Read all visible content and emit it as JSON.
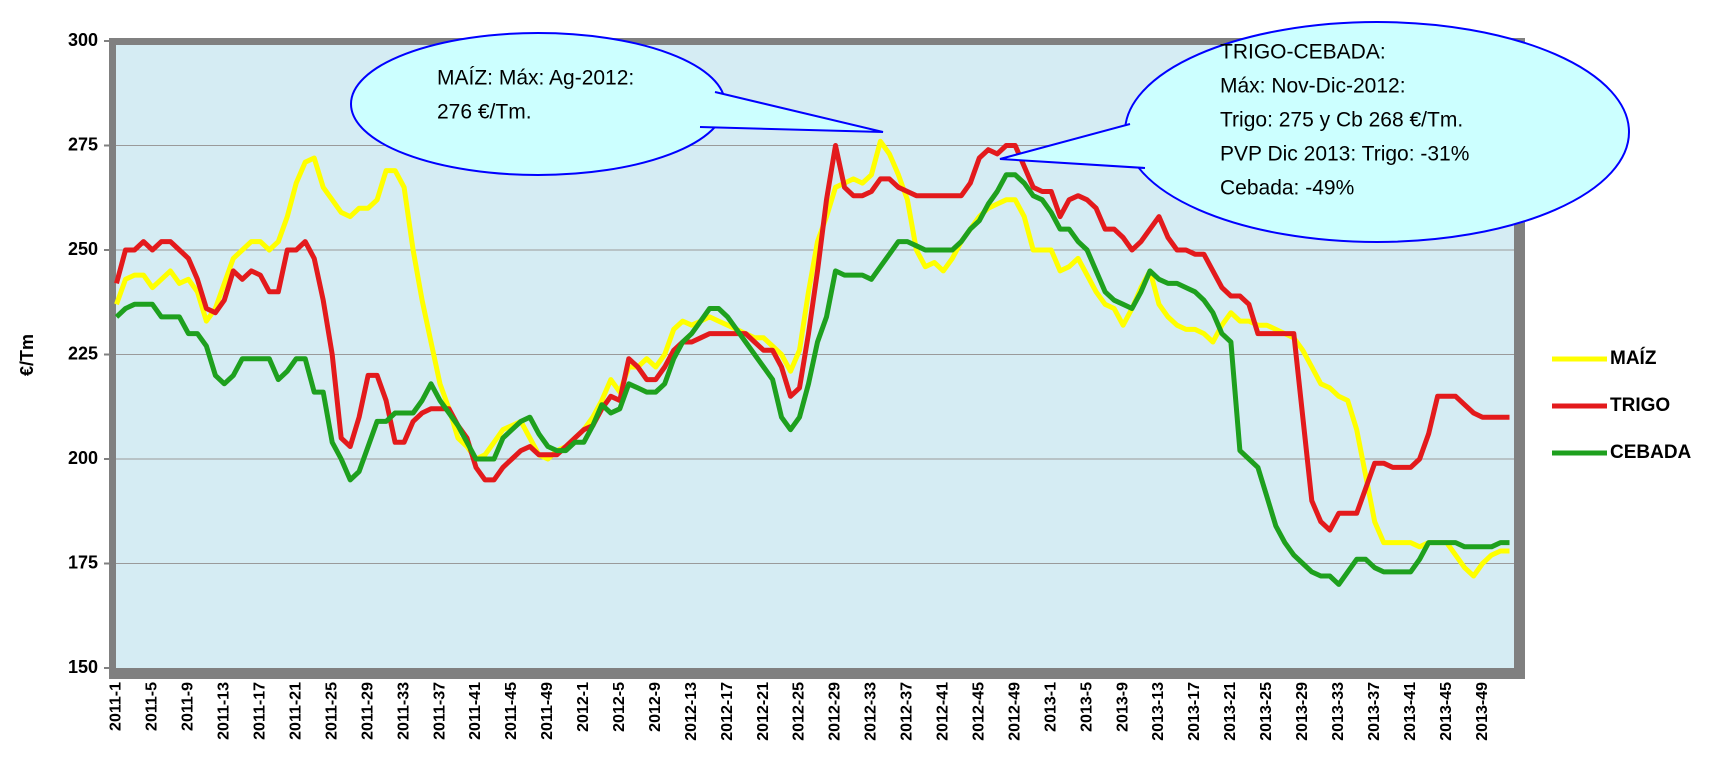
{
  "chart_data": {
    "type": "line",
    "ylabel": "€/Tm",
    "categories": [
      "2011-1",
      null,
      null,
      null,
      "2011-5",
      null,
      null,
      null,
      "2011-9",
      null,
      null,
      null,
      "2011-13",
      null,
      null,
      null,
      "2011-17",
      null,
      null,
      null,
      "2011-21",
      null,
      null,
      null,
      "2011-25",
      null,
      null,
      null,
      "2011-29",
      null,
      null,
      null,
      "2011-33",
      null,
      null,
      null,
      "2011-37",
      null,
      null,
      null,
      "2011-41",
      null,
      null,
      null,
      "2011-45",
      null,
      null,
      null,
      "2011-49",
      null,
      null,
      null,
      "2012-1",
      null,
      null,
      null,
      "2012-5",
      null,
      null,
      null,
      "2012-9",
      null,
      null,
      null,
      "2012-13",
      null,
      null,
      null,
      "2012-17",
      null,
      null,
      null,
      "2012-21",
      null,
      null,
      null,
      "2012-25",
      null,
      null,
      null,
      "2012-29",
      null,
      null,
      null,
      "2012-33",
      null,
      null,
      null,
      "2012-37",
      null,
      null,
      null,
      "2012-41",
      null,
      null,
      null,
      "2012-45",
      null,
      null,
      null,
      "2012-49",
      null,
      null,
      null,
      "2013-1",
      null,
      null,
      null,
      "2013-5",
      null,
      null,
      null,
      "2013-9",
      null,
      null,
      null,
      "2013-13",
      null,
      null,
      null,
      "2013-17",
      null,
      null,
      null,
      "2013-21",
      null,
      null,
      null,
      "2013-25",
      null,
      null,
      null,
      "2013-29",
      null,
      null,
      null,
      "2013-33",
      null,
      null,
      null,
      "2013-37",
      null,
      null,
      null,
      "2013-41",
      null,
      null,
      null,
      "2013-45",
      null,
      null,
      null,
      "2013-49",
      null,
      null,
      null
    ],
    "series": [
      {
        "name": "MAÍZ",
        "color": "#ffff00",
        "values": [
          237,
          243,
          244,
          244,
          241,
          243,
          245,
          242,
          243,
          240,
          233,
          236,
          242,
          248,
          250,
          252,
          252,
          250,
          252,
          258,
          266,
          271,
          272,
          265,
          262,
          259,
          258,
          260,
          260,
          262,
          269,
          269,
          265,
          250,
          238,
          228,
          218,
          212,
          205,
          203,
          200,
          201,
          204,
          207,
          208,
          209,
          205,
          201,
          200,
          202,
          203,
          205,
          207,
          210,
          214,
          219,
          216,
          222,
          222,
          224,
          222,
          225,
          231,
          233,
          232,
          233,
          234,
          233,
          232,
          231,
          230,
          229,
          229,
          227,
          225,
          221,
          226,
          240,
          252,
          258,
          265,
          266,
          267,
          266,
          268,
          276,
          273,
          268,
          262,
          250,
          246,
          247,
          245,
          248,
          252,
          255,
          258,
          260,
          261,
          262,
          262,
          258,
          250,
          250,
          250,
          245,
          246,
          248,
          244,
          240,
          237,
          236,
          232,
          236,
          241,
          245,
          237,
          234,
          232,
          231,
          231,
          230,
          228,
          232,
          235,
          233,
          233,
          232,
          232,
          231,
          230,
          229,
          226,
          222,
          218,
          217,
          215,
          214,
          207,
          196,
          185,
          180,
          180,
          180,
          180,
          179,
          180,
          180,
          180,
          177,
          174,
          172,
          175,
          177,
          178,
          178
        ]
      },
      {
        "name": "TRIGO",
        "color": "#e31a1c",
        "values": [
          242,
          250,
          250,
          252,
          250,
          252,
          252,
          250,
          248,
          243,
          236,
          235,
          238,
          245,
          243,
          245,
          244,
          240,
          240,
          250,
          250,
          252,
          248,
          238,
          225,
          205,
          203,
          210,
          220,
          220,
          214,
          204,
          204,
          209,
          211,
          212,
          212,
          212,
          208,
          205,
          198,
          195,
          195,
          198,
          200,
          202,
          203,
          201,
          201,
          201,
          203,
          205,
          207,
          208,
          212,
          215,
          214,
          224,
          222,
          219,
          219,
          222,
          226,
          228,
          228,
          229,
          230,
          230,
          230,
          230,
          230,
          228,
          226,
          226,
          222,
          215,
          217,
          230,
          245,
          262,
          275,
          265,
          263,
          263,
          264,
          267,
          267,
          265,
          264,
          263,
          263,
          263,
          263,
          263,
          263,
          266,
          272,
          274,
          273,
          275,
          275,
          270,
          265,
          264,
          264,
          258,
          262,
          263,
          262,
          260,
          255,
          255,
          253,
          250,
          252,
          255,
          258,
          253,
          250,
          250,
          249,
          249,
          245,
          241,
          239,
          239,
          237,
          230,
          230,
          230,
          230,
          230,
          210,
          190,
          185,
          183,
          187,
          187,
          187,
          193,
          199,
          199,
          198,
          198,
          198,
          200,
          206,
          215,
          215,
          215,
          213,
          211,
          210,
          210,
          210,
          210
        ]
      },
      {
        "name": "CEBADA",
        "color": "#1ea01e",
        "values": [
          234,
          236,
          237,
          237,
          237,
          234,
          234,
          234,
          230,
          230,
          227,
          220,
          218,
          220,
          224,
          224,
          224,
          224,
          219,
          221,
          224,
          224,
          216,
          216,
          204,
          200,
          195,
          197,
          203,
          209,
          209,
          211,
          211,
          211,
          214,
          218,
          214,
          211,
          208,
          204,
          200,
          200,
          200,
          205,
          207,
          209,
          210,
          206,
          203,
          202,
          202,
          204,
          204,
          208,
          213,
          211,
          212,
          218,
          217,
          216,
          216,
          218,
          224,
          228,
          230,
          233,
          236,
          236,
          234,
          231,
          228,
          225,
          222,
          219,
          210,
          207,
          210,
          218,
          228,
          234,
          245,
          244,
          244,
          244,
          243,
          246,
          249,
          252,
          252,
          251,
          250,
          250,
          250,
          250,
          252,
          255,
          257,
          261,
          264,
          268,
          268,
          266,
          263,
          262,
          259,
          255,
          255,
          252,
          250,
          245,
          240,
          238,
          237,
          236,
          240,
          245,
          243,
          242,
          242,
          241,
          240,
          238,
          235,
          230,
          228,
          202,
          200,
          198,
          191,
          184,
          180,
          177,
          175,
          173,
          172,
          172,
          170,
          173,
          176,
          176,
          174,
          173,
          173,
          173,
          173,
          176,
          180,
          180,
          180,
          180,
          179,
          179,
          179,
          179,
          180,
          180
        ]
      }
    ],
    "ylim": [
      150,
      300
    ],
    "yticks": [
      150,
      175,
      200,
      225,
      250,
      275,
      300
    ],
    "grid": true,
    "legend": "right",
    "annotations": [
      {
        "lines": [
          "MAÍZ: Máx: Ag-2012:",
          "276 €/Tm."
        ]
      },
      {
        "lines": [
          "TRIGO-CEBADA:",
          "Máx: Nov-Dic-2012:",
          "Trigo: 275 y Cb 268 €/Tm.",
          "PVP Dic 2013:  Trigo: -31%",
          "Cebada: -49%"
        ]
      }
    ]
  }
}
